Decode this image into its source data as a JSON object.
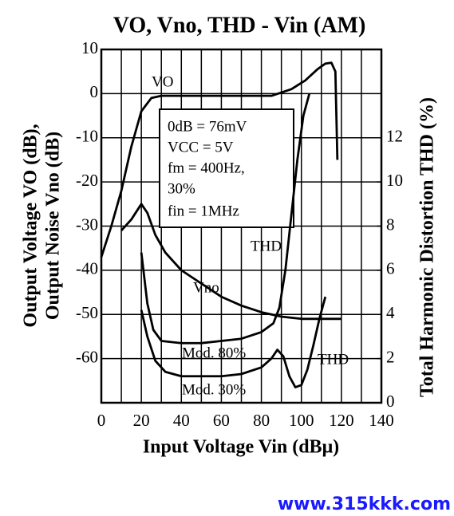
{
  "chart_data": {
    "type": "line",
    "title": "VO, Vno, THD - Vin (AM)",
    "x_label": "Input Voltage Vin (dBμ)",
    "y_label": [
      "Output Voltage VO (dB),",
      "Output Noise Vno (dB)"
    ],
    "y2_label": "Total Harmonic Distortion THD (%)",
    "xlim": [
      0,
      140
    ],
    "xticks": [
      0,
      20,
      40,
      60,
      80,
      100,
      120,
      140
    ],
    "xgrid": [
      10,
      30,
      50,
      70,
      90,
      110,
      130
    ],
    "ylim": [
      -70,
      10
    ],
    "yticks": [
      -60,
      -50,
      -40,
      -30,
      -20,
      -10,
      0,
      10
    ],
    "y2lim": [
      0,
      16
    ],
    "y2ticks": [
      0,
      2,
      4,
      6,
      8,
      10,
      12
    ],
    "grid": true,
    "series": [
      {
        "name": "VO",
        "color": "#000000",
        "x": [
          0,
          5,
          10,
          15,
          20,
          25,
          30,
          50,
          70,
          85,
          95,
          102,
          108,
          112,
          115,
          117,
          118
        ],
        "values": [
          -37,
          -30,
          -22,
          -12,
          -4,
          -1,
          -0.5,
          -0.5,
          -0.5,
          -0.5,
          1,
          3,
          5.5,
          6.8,
          7,
          5,
          -15
        ]
      },
      {
        "name": "Vno",
        "color": "#000000",
        "x": [
          10,
          15,
          20,
          23,
          27,
          32,
          40,
          50,
          60,
          70,
          80,
          90,
          100,
          110,
          120
        ],
        "values": [
          -31,
          -28.5,
          -25,
          -27,
          -32,
          -36,
          -40,
          -43,
          -46,
          -48,
          -49.5,
          -50.5,
          -51,
          -51,
          -51
        ]
      },
      {
        "name": "Mod. 80%",
        "color": "#000000",
        "axis": "y2",
        "x": [
          20,
          23,
          26,
          30,
          40,
          50,
          60,
          70,
          80,
          86,
          89,
          92,
          95,
          98,
          101,
          104
        ],
        "values": [
          6.8,
          4.5,
          3.3,
          2.8,
          2.7,
          2.7,
          2.8,
          2.9,
          3.2,
          3.6,
          4.3,
          6,
          8.5,
          11,
          13,
          14
        ]
      },
      {
        "name": "Mod. 30%",
        "color": "#000000",
        "axis": "y2",
        "x": [
          20,
          23,
          27,
          32,
          40,
          50,
          60,
          70,
          80,
          85,
          88,
          91,
          94,
          97,
          100,
          103,
          106,
          109,
          112
        ],
        "values": [
          4.2,
          3,
          1.9,
          1.4,
          1.2,
          1.2,
          1.2,
          1.3,
          1.6,
          2,
          2.4,
          2.1,
          1.2,
          0.7,
          0.8,
          1.5,
          2.6,
          3.8,
          4.8
        ]
      }
    ],
    "annotations": [
      "THD",
      "THD",
      "0dB = 76mV",
      "VCC = 5V",
      "fm = 400Hz,",
      "30%",
      "fin = 1MHz"
    ],
    "watermark": "www.315kkk.com"
  }
}
